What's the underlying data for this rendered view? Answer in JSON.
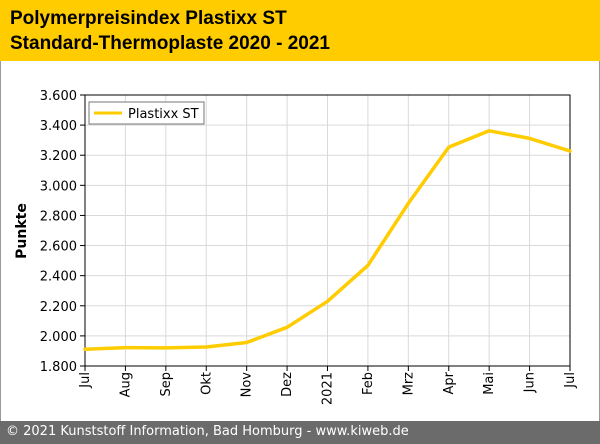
{
  "header": {
    "title_line1": "Polymerpreisindex Plastixx ST",
    "title_line2": "Standard-Thermoplaste 2020 - 2021",
    "background": "#ffcc00"
  },
  "footer": {
    "text": "© 2021 Kunststoff Information, Bad Homburg - www.kiweb.de",
    "background": "#6b6b6b"
  },
  "chart_data": {
    "type": "line",
    "title": "Polymerpreisindex Plastixx ST Standard-Thermoplaste 2020 - 2021",
    "xlabel": "",
    "ylabel": "Punkte",
    "categories": [
      "Jul",
      "Aug",
      "Sep",
      "Okt",
      "Nov",
      "Dez",
      "2021",
      "Feb",
      "Mrz",
      "Apr",
      "Mai",
      "Jun",
      "Jul"
    ],
    "series": [
      {
        "name": "Plastixx ST",
        "color": "#ffcc00",
        "values": [
          1911,
          1922,
          1920,
          1926,
          1956,
          2057,
          2230,
          2468,
          2880,
          3254,
          3362,
          3312,
          3228
        ]
      }
    ],
    "ylim": [
      1800,
      3600
    ],
    "yticks": [
      1800,
      2000,
      2200,
      2400,
      2600,
      2800,
      3000,
      3200,
      3400,
      3600
    ],
    "ytick_labels": [
      "1.800",
      "2.000",
      "2.200",
      "2.400",
      "2.600",
      "2.800",
      "3.000",
      "3.200",
      "3.400",
      "3.600"
    ],
    "grid": true,
    "legend_position": "top-left"
  }
}
